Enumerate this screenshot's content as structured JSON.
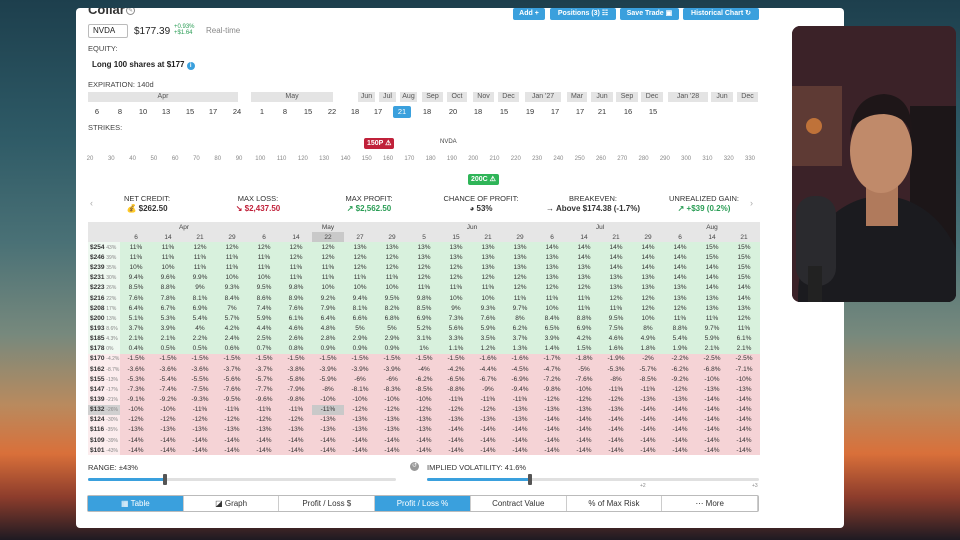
{
  "app": {
    "title": "Collar",
    "ticker": "NVDA",
    "price": "$177.39",
    "change_pct": "+0.93%",
    "change_abs": "+$1.64",
    "realtime": "Real-time"
  },
  "toolbar": {
    "add": "Add +",
    "positions": "Positions (3) ☷",
    "save": "Save Trade ▣",
    "historical": "Historical Chart ↻"
  },
  "equity": {
    "label": "EQUITY:",
    "value": "Long 100 shares at $177"
  },
  "expiration": {
    "label": "EXPIRATION: 140d",
    "months": [
      "Apr",
      "May",
      "Jun",
      "Jul",
      "Aug",
      "Sep",
      "Oct",
      "Nov",
      "Dec",
      "Jan '27",
      "Mar",
      "Jun",
      "Sep",
      "Dec",
      "Jan '28",
      "Jun",
      "Dec"
    ],
    "days": [
      "6",
      "8",
      "10",
      "13",
      "15",
      "17",
      "24",
      "1",
      "8",
      "15",
      "22",
      "18",
      "17",
      "21",
      "18",
      "20",
      "18",
      "15",
      "19",
      "17",
      "17",
      "21",
      "16",
      "15"
    ],
    "selected_index": 13
  },
  "strikes": {
    "label": "STRIKES:",
    "ticks": [
      "20",
      "30",
      "40",
      "50",
      "60",
      "70",
      "80",
      "90",
      "100",
      "110",
      "120",
      "130",
      "140",
      "150",
      "160",
      "170",
      "180",
      "190",
      "200",
      "210",
      "220",
      "230",
      "240",
      "250",
      "260",
      "270",
      "280",
      "290",
      "300",
      "310",
      "320",
      "330"
    ],
    "put_tag": "150P ⚠",
    "call_tag": "200C ⚠",
    "nvda_marker": "NVDA"
  },
  "metrics": [
    {
      "h": "NET CREDIT:",
      "v": "💰 $262.50"
    },
    {
      "h": "MAX LOSS:",
      "v": "↘ $2,437.50"
    },
    {
      "h": "MAX PROFIT:",
      "v": "↗ $2,562.50"
    },
    {
      "h": "CHANCE OF PROFIT:",
      "v": "◕ 53%"
    },
    {
      "h": "BREAKEVEN:",
      "v": "→ Above $174.38 (-1.7%)"
    },
    {
      "h": "UNREALIZED GAIN:",
      "v": "↗ +$39 (0.2%)"
    }
  ],
  "grid": {
    "month_header": [
      "Apr",
      "May",
      "Jun",
      "Jul",
      "Aug"
    ],
    "day_header": [
      "6",
      "14",
      "21",
      "29",
      "6",
      "14",
      "22",
      "27",
      "29",
      "5",
      "15",
      "21",
      "29",
      "6",
      "14",
      "21",
      "29",
      "6",
      "14",
      "21"
    ],
    "rows": [
      {
        "p": "$254",
        "pc": "43%",
        "v": [
          "11%",
          "11%",
          "12%",
          "12%",
          "12%",
          "12%",
          "12%",
          "13%",
          "13%",
          "13%",
          "13%",
          "13%",
          "13%",
          "14%",
          "14%",
          "14%",
          "14%",
          "14%",
          "15%",
          "15%"
        ]
      },
      {
        "p": "$246",
        "pc": "39%",
        "v": [
          "11%",
          "11%",
          "11%",
          "11%",
          "11%",
          "12%",
          "12%",
          "12%",
          "12%",
          "13%",
          "13%",
          "13%",
          "13%",
          "13%",
          "14%",
          "14%",
          "14%",
          "14%",
          "15%",
          "15%"
        ]
      },
      {
        "p": "$239",
        "pc": "35%",
        "v": [
          "10%",
          "10%",
          "11%",
          "11%",
          "11%",
          "11%",
          "11%",
          "12%",
          "12%",
          "12%",
          "12%",
          "13%",
          "13%",
          "13%",
          "13%",
          "14%",
          "14%",
          "14%",
          "14%",
          "15%"
        ]
      },
      {
        "p": "$231",
        "pc": "30%",
        "v": [
          "9.4%",
          "9.6%",
          "9.9%",
          "10%",
          "10%",
          "11%",
          "11%",
          "11%",
          "11%",
          "12%",
          "12%",
          "12%",
          "12%",
          "13%",
          "13%",
          "13%",
          "13%",
          "14%",
          "14%",
          "15%"
        ]
      },
      {
        "p": "$223",
        "pc": "26%",
        "v": [
          "8.5%",
          "8.8%",
          "9%",
          "9.3%",
          "9.5%",
          "9.8%",
          "10%",
          "10%",
          "10%",
          "11%",
          "11%",
          "11%",
          "12%",
          "12%",
          "12%",
          "13%",
          "13%",
          "13%",
          "14%",
          "14%"
        ]
      },
      {
        "p": "$216",
        "pc": "22%",
        "v": [
          "7.6%",
          "7.8%",
          "8.1%",
          "8.4%",
          "8.6%",
          "8.9%",
          "9.2%",
          "9.4%",
          "9.5%",
          "9.8%",
          "10%",
          "10%",
          "11%",
          "11%",
          "11%",
          "12%",
          "12%",
          "13%",
          "13%",
          "14%"
        ]
      },
      {
        "p": "$208",
        "pc": "17%",
        "v": [
          "6.4%",
          "6.7%",
          "6.9%",
          "7%",
          "7.4%",
          "7.6%",
          "7.9%",
          "8.1%",
          "8.2%",
          "8.5%",
          "9%",
          "9.3%",
          "9.7%",
          "10%",
          "11%",
          "11%",
          "12%",
          "12%",
          "13%",
          "13%"
        ]
      },
      {
        "p": "$200",
        "pc": "13%",
        "v": [
          "5.1%",
          "5.3%",
          "5.4%",
          "5.7%",
          "5.9%",
          "6.1%",
          "6.4%",
          "6.6%",
          "6.8%",
          "6.9%",
          "7.3%",
          "7.6%",
          "8%",
          "8.4%",
          "8.8%",
          "9.5%",
          "10%",
          "11%",
          "11%",
          "12%"
        ]
      },
      {
        "p": "$193",
        "pc": "8.6%",
        "v": [
          "3.7%",
          "3.9%",
          "4%",
          "4.2%",
          "4.4%",
          "4.6%",
          "4.8%",
          "5%",
          "5%",
          "5.2%",
          "5.6%",
          "5.9%",
          "6.2%",
          "6.5%",
          "6.9%",
          "7.5%",
          "8%",
          "8.8%",
          "9.7%",
          "11%"
        ]
      },
      {
        "p": "$185",
        "pc": "4.3%",
        "v": [
          "2.1%",
          "2.1%",
          "2.2%",
          "2.4%",
          "2.5%",
          "2.6%",
          "2.8%",
          "2.9%",
          "2.9%",
          "3.1%",
          "3.3%",
          "3.5%",
          "3.7%",
          "3.9%",
          "4.2%",
          "4.6%",
          "4.9%",
          "5.4%",
          "5.9%",
          "6.1%"
        ]
      },
      {
        "p": "$178",
        "pc": "0%",
        "v": [
          "0.4%",
          "0.5%",
          "0.5%",
          "0.6%",
          "0.7%",
          "0.8%",
          "0.9%",
          "0.9%",
          "0.9%",
          "1%",
          "1.1%",
          "1.2%",
          "1.3%",
          "1.4%",
          "1.5%",
          "1.6%",
          "1.8%",
          "1.9%",
          "2.1%",
          "2.1%"
        ]
      },
      {
        "p": "$170",
        "pc": "-4.2%",
        "v": [
          "-1.5%",
          "-1.5%",
          "-1.5%",
          "-1.5%",
          "-1.5%",
          "-1.5%",
          "-1.5%",
          "-1.5%",
          "-1.5%",
          "-1.5%",
          "-1.5%",
          "-1.6%",
          "-1.6%",
          "-1.7%",
          "-1.8%",
          "-1.9%",
          "-2%",
          "-2.2%",
          "-2.5%",
          "-2.5%"
        ]
      },
      {
        "p": "$162",
        "pc": "-8.7%",
        "v": [
          "-3.6%",
          "-3.6%",
          "-3.6%",
          "-3.7%",
          "-3.7%",
          "-3.8%",
          "-3.9%",
          "-3.9%",
          "-3.9%",
          "-4%",
          "-4.2%",
          "-4.4%",
          "-4.5%",
          "-4.7%",
          "-5%",
          "-5.3%",
          "-5.7%",
          "-6.2%",
          "-6.8%",
          "-7.1%"
        ]
      },
      {
        "p": "$155",
        "pc": "-13%",
        "v": [
          "-5.3%",
          "-5.4%",
          "-5.5%",
          "-5.6%",
          "-5.7%",
          "-5.8%",
          "-5.9%",
          "-6%",
          "-6%",
          "-6.2%",
          "-6.5%",
          "-6.7%",
          "-6.9%",
          "-7.2%",
          "-7.6%",
          "-8%",
          "-8.5%",
          "-9.2%",
          "-10%",
          "-10%"
        ]
      },
      {
        "p": "$147",
        "pc": "-17%",
        "v": [
          "-7.3%",
          "-7.4%",
          "-7.5%",
          "-7.6%",
          "-7.7%",
          "-7.9%",
          "-8%",
          "-8.1%",
          "-8.3%",
          "-8.5%",
          "-8.8%",
          "-9%",
          "-9.4%",
          "-9.8%",
          "-10%",
          "-11%",
          "-11%",
          "-12%",
          "-13%",
          "-13%"
        ]
      },
      {
        "p": "$139",
        "pc": "-21%",
        "v": [
          "-9.1%",
          "-9.2%",
          "-9.3%",
          "-9.5%",
          "-9.6%",
          "-9.8%",
          "-10%",
          "-10%",
          "-10%",
          "-10%",
          "-11%",
          "-11%",
          "-11%",
          "-12%",
          "-12%",
          "-12%",
          "-13%",
          "-13%",
          "-14%",
          "-14%"
        ]
      },
      {
        "p": "$132",
        "pc": "-26%",
        "v": [
          "-10%",
          "-10%",
          "-11%",
          "-11%",
          "-11%",
          "-11%",
          "-11%",
          "-12%",
          "-12%",
          "-12%",
          "-12%",
          "-12%",
          "-13%",
          "-13%",
          "-13%",
          "-13%",
          "-14%",
          "-14%",
          "-14%",
          "-14%"
        ]
      },
      {
        "p": "$124",
        "pc": "-30%",
        "v": [
          "-12%",
          "-12%",
          "-12%",
          "-12%",
          "-12%",
          "-12%",
          "-13%",
          "-13%",
          "-13%",
          "-13%",
          "-13%",
          "-13%",
          "-13%",
          "-14%",
          "-14%",
          "-14%",
          "-14%",
          "-14%",
          "-14%",
          "-14%"
        ]
      },
      {
        "p": "$116",
        "pc": "-35%",
        "v": [
          "-13%",
          "-13%",
          "-13%",
          "-13%",
          "-13%",
          "-13%",
          "-13%",
          "-13%",
          "-13%",
          "-13%",
          "-14%",
          "-14%",
          "-14%",
          "-14%",
          "-14%",
          "-14%",
          "-14%",
          "-14%",
          "-14%",
          "-14%"
        ]
      },
      {
        "p": "$109",
        "pc": "-39%",
        "v": [
          "-14%",
          "-14%",
          "-14%",
          "-14%",
          "-14%",
          "-14%",
          "-14%",
          "-14%",
          "-14%",
          "-14%",
          "-14%",
          "-14%",
          "-14%",
          "-14%",
          "-14%",
          "-14%",
          "-14%",
          "-14%",
          "-14%",
          "-14%"
        ]
      },
      {
        "p": "$101",
        "pc": "-43%",
        "v": [
          "-14%",
          "-14%",
          "-14%",
          "-14%",
          "-14%",
          "-14%",
          "-14%",
          "-14%",
          "-14%",
          "-14%",
          "-14%",
          "-14%",
          "-14%",
          "-14%",
          "-14%",
          "-14%",
          "-14%",
          "-14%",
          "-14%",
          "-14%"
        ]
      }
    ]
  },
  "range": {
    "label": "RANGE: ±43%",
    "level": 0.25
  },
  "iv": {
    "label": "IMPLIED VOLATILITY: 41.6%",
    "level": 0.31,
    "marks": [
      "+2",
      "+3"
    ]
  },
  "tabs": [
    "▦ Table",
    "◪ Graph",
    "Profit / Loss $",
    "Profit / Loss %",
    "Contract Value",
    "% of Max Risk",
    "⋯ More"
  ],
  "active_tab": 3,
  "colors": {
    "accent": "#3aa0dd",
    "profit": "#d8f1dd",
    "loss": "#f5d3d6",
    "put": "#c0213a",
    "call": "#2fb558"
  }
}
